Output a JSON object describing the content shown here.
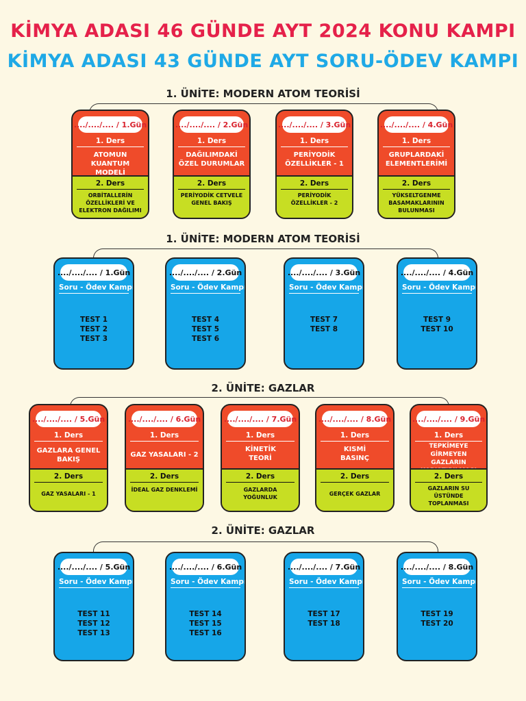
{
  "titles": {
    "konu": "KİMYA ADASI 46 GÜNDE AYT 2024 KONU KAMPI",
    "soru": "KİMYA ADASI 43 GÜNDE AYT SORU-ÖDEV KAMPI"
  },
  "sections": [
    {
      "heading": "1. ÜNİTE: MODERN ATOM TEORİSİ",
      "cards": [
        {
          "day": "..../..../.... / 1.Gün",
          "ders1": "1. Ders",
          "topic1": "ATOMUN KUANTUM MODELİ",
          "ders2": "2. Ders",
          "topic2": "ORBİTALLERİN ÖZELLİKLERİ VE ELEKTRON DAĞILIMI"
        },
        {
          "day": "..../..../.... / 2.Gün",
          "ders1": "1. Ders",
          "topic1": "DAĞILIMDAKİ ÖZEL DURUMLAR",
          "ders2": "2. Ders",
          "topic2": "PERİYODİK CETVELE GENEL BAKIŞ"
        },
        {
          "day": "..../..../.... / 3.Gün",
          "ders1": "1. Ders",
          "topic1": "PERİYODİK ÖZELLİKLER - 1",
          "ders2": "2. Ders",
          "topic2": "PERİYODİK ÖZELLİKLER - 2"
        },
        {
          "day": "..../..../.... / 4.Gün",
          "ders1": "1. Ders",
          "topic1": "GRUPLARDAKİ ELEMENTLERİMİ",
          "ders2": "2. Ders",
          "topic2": "YÜKSELTGENME BASAMAKLARININ BULUNMASI"
        }
      ]
    },
    {
      "heading": "1. ÜNİTE: MODERN ATOM TEORİSİ",
      "cards": [
        {
          "day": "..../..../.... / 1.Gün",
          "label": "Soru - Ödev Kampı",
          "tests": [
            "TEST 1",
            "TEST 2",
            "TEST 3"
          ]
        },
        {
          "day": "..../..../.... / 2.Gün",
          "label": "Soru - Ödev Kampı",
          "tests": [
            "TEST 4",
            "TEST 5",
            "TEST 6"
          ]
        },
        {
          "day": "..../..../.... / 3.Gün",
          "label": "Soru - Ödev Kampı",
          "tests": [
            "TEST 7",
            "TEST 8"
          ]
        },
        {
          "day": "..../..../.... / 4.Gün",
          "label": "Soru - Ödev Kampı",
          "tests": [
            "TEST 9",
            "TEST 10"
          ]
        }
      ]
    },
    {
      "heading": "2. ÜNİTE: GAZLAR",
      "cards": [
        {
          "day": "..../..../.... / 5.Gün",
          "ders1": "1. Ders",
          "topic1": "GAZLARA GENEL BAKIŞ",
          "ders2": "2. Ders",
          "topic2": "GAZ YASALARI - 1"
        },
        {
          "day": "..../..../.... / 6.Gün",
          "ders1": "1. Ders",
          "topic1": "GAZ YASALARI - 2",
          "ders2": "2. Ders",
          "topic2": "İDEAL GAZ DENKLEMİ"
        },
        {
          "day": "..../..../.... / 7.Gün",
          "ders1": "1. Ders",
          "topic1": "KİNETİK TEORİ",
          "ders2": "2. Ders",
          "topic2": "GAZLARDA YOĞUNLUK"
        },
        {
          "day": "..../..../.... / 8.Gün",
          "ders1": "1. Ders",
          "topic1": "KISMİ BASINÇ",
          "ders2": "2. Ders",
          "topic2": "GERÇEK GAZLAR"
        },
        {
          "day": "..../..../.... / 9.Gün",
          "ders1": "1. Ders",
          "topic1": "TEPKİMEYE GİRMEYEN GAZLARIN KARIŞTIRILMASI",
          "ders2": "2. Ders",
          "topic2": "GAZLARIN SU ÜSTÜNDE TOPLANMASI"
        }
      ]
    },
    {
      "heading": "2. ÜNİTE: GAZLAR",
      "cards": [
        {
          "day": "..../..../.... / 5.Gün",
          "label": "Soru - Ödev Kampı",
          "tests": [
            "TEST 11",
            "TEST 12",
            "TEST 13"
          ]
        },
        {
          "day": "..../..../.... / 6.Gün",
          "label": "Soru - Ödev Kampı",
          "tests": [
            "TEST 14",
            "TEST 15",
            "TEST 16"
          ]
        },
        {
          "day": "..../..../.... / 7.Gün",
          "label": "Soru - Ödev Kampı",
          "tests": [
            "TEST 17",
            "TEST 18"
          ]
        },
        {
          "day": "..../..../.... / 8.Gün",
          "label": "Soru - Ödev Kampı",
          "tests": [
            "TEST 19",
            "TEST 20"
          ]
        }
      ]
    }
  ]
}
